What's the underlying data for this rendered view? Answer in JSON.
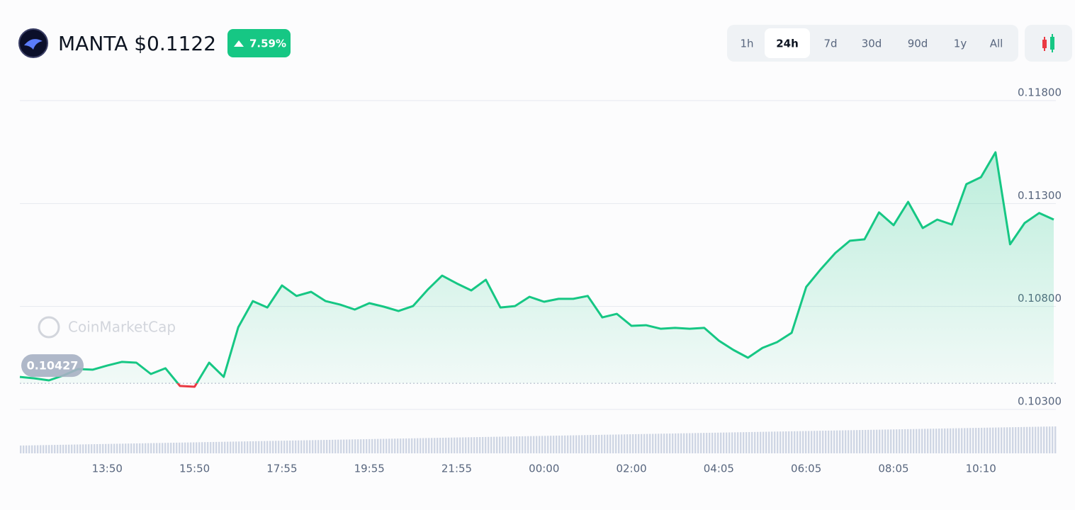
{
  "header": {
    "title": "MANTA $0.1122",
    "change": "7.59%"
  },
  "timeframes": {
    "options": [
      "1h",
      "24h",
      "7d",
      "30d",
      "90d",
      "1y",
      "All"
    ],
    "selected": 1
  },
  "watermark": "CoinMarketCap",
  "chart_data": {
    "type": "line",
    "categories": [
      null,
      null,
      null,
      null,
      null,
      null,
      "13:50",
      null,
      null,
      null,
      null,
      null,
      "15:50",
      null,
      null,
      null,
      null,
      null,
      "17:55",
      null,
      null,
      null,
      null,
      null,
      "19:55",
      null,
      null,
      null,
      null,
      null,
      "21:55",
      null,
      null,
      null,
      null,
      null,
      "00:00",
      null,
      null,
      null,
      null,
      null,
      "02:00",
      null,
      null,
      null,
      null,
      null,
      "04:05",
      null,
      null,
      null,
      null,
      null,
      "06:05",
      null,
      null,
      null,
      null,
      null,
      "08:05",
      null,
      null,
      null,
      null,
      null,
      "10:10",
      null,
      null,
      null,
      null,
      null
    ],
    "values": [
      0.10458,
      0.10451,
      0.10441,
      0.10465,
      0.10496,
      0.10493,
      0.10513,
      0.10531,
      0.10527,
      0.10472,
      0.105,
      0.10414,
      0.1041,
      0.10527,
      0.10458,
      0.10699,
      0.10826,
      0.10795,
      0.10902,
      0.10851,
      0.10871,
      0.10826,
      0.10809,
      0.10785,
      0.10816,
      0.10799,
      0.10778,
      0.10802,
      0.10881,
      0.1095,
      0.10912,
      0.10878,
      0.1093,
      0.10795,
      0.10802,
      0.10847,
      0.10823,
      0.10837,
      0.10837,
      0.10851,
      0.10747,
      0.10764,
      0.10706,
      0.10709,
      0.10692,
      0.10696,
      0.10692,
      0.10696,
      0.10634,
      0.10589,
      0.10551,
      0.10599,
      0.10627,
      0.10672,
      0.10895,
      0.10981,
      0.1106,
      0.11119,
      0.11126,
      0.11257,
      0.11195,
      0.11308,
      0.11181,
      0.11222,
      0.11198,
      0.11394,
      0.11428,
      0.11549,
      0.11102,
      0.11205,
      0.11254,
      0.11222
    ],
    "baseline": 0.10427,
    "color": "#16c784",
    "down_color": "#ea3943",
    "ylim": [
      0.103,
      0.118
    ],
    "yticks": [
      {
        "value": 0.103,
        "label": "0.10300"
      },
      {
        "value": 0.108,
        "label": "0.10800"
      },
      {
        "value": 0.113,
        "label": "0.11300"
      },
      {
        "value": 0.118,
        "label": "0.11800"
      }
    ],
    "grid": true
  }
}
